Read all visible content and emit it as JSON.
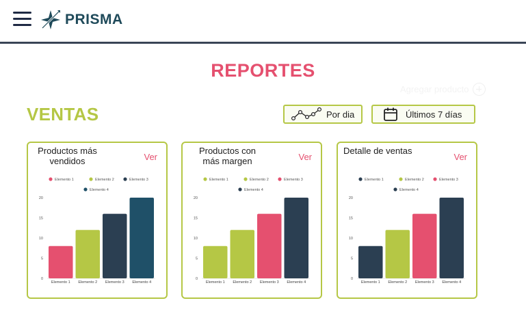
{
  "header": {
    "brand": "PRISMA"
  },
  "page": {
    "title": "REPORTES",
    "add_product": "Agregar producto"
  },
  "section": {
    "title": "VENTAS"
  },
  "filters": {
    "by_day": "Por dia",
    "range": "Últimos 7 días"
  },
  "colors": {
    "pink": "#e5506f",
    "lime": "#b5c745",
    "dark": "#2b3f52",
    "teal": "#1f5068"
  },
  "cards": [
    {
      "title_line1": "Productos más",
      "title_line2": "vendidos",
      "link": "Ver"
    },
    {
      "title_line1": "Productos con",
      "title_line2": "más margen",
      "link": "Ver"
    },
    {
      "title_line1": "Detalle de ventas",
      "title_line2": "",
      "link": "Ver"
    }
  ],
  "chart_data": [
    {
      "type": "bar",
      "categories": [
        "Elemento 1",
        "Elemento 2",
        "Elemento 3",
        "Elemento 4"
      ],
      "values": [
        8,
        12,
        16,
        20
      ],
      "bar_colors": [
        "#e5506f",
        "#b5c745",
        "#2b3f52",
        "#1f5068"
      ],
      "legend": [
        "Elemento 1",
        "Elemento 2",
        "Elemento 3",
        "Elemento 4"
      ],
      "yticks": [
        0,
        5,
        10,
        15,
        20
      ],
      "ylim": [
        0,
        20
      ]
    },
    {
      "type": "bar",
      "categories": [
        "Elemento 1",
        "Elemento 2",
        "Elemento 3",
        "Elemento 4"
      ],
      "values": [
        8,
        12,
        16,
        20
      ],
      "bar_colors": [
        "#b5c745",
        "#b5c745",
        "#e5506f",
        "#2b3f52"
      ],
      "legend": [
        "Elemento 1",
        "Elemento 2",
        "Elemento 3",
        "Elemento 4"
      ],
      "legend_colors": [
        "#b5c745",
        "#b5c745",
        "#e5506f",
        "#2b3f52"
      ],
      "yticks": [
        0,
        5,
        10,
        15,
        20
      ],
      "ylim": [
        0,
        20
      ]
    },
    {
      "type": "bar",
      "categories": [
        "Elemento 1",
        "Elemento 2",
        "Elemento 3",
        "Elemento 4"
      ],
      "values": [
        8,
        12,
        16,
        20
      ],
      "bar_colors": [
        "#2b3f52",
        "#b5c745",
        "#e5506f",
        "#2b3f52"
      ],
      "legend": [
        "Elemento 1",
        "Elemento 2",
        "Elemento 3",
        "Elemento 4"
      ],
      "legend_colors": [
        "#2b3f52",
        "#b5c745",
        "#e5506f",
        "#2b3f52"
      ],
      "yticks": [
        0,
        5,
        10,
        15,
        20
      ],
      "ylim": [
        0,
        20
      ]
    }
  ]
}
